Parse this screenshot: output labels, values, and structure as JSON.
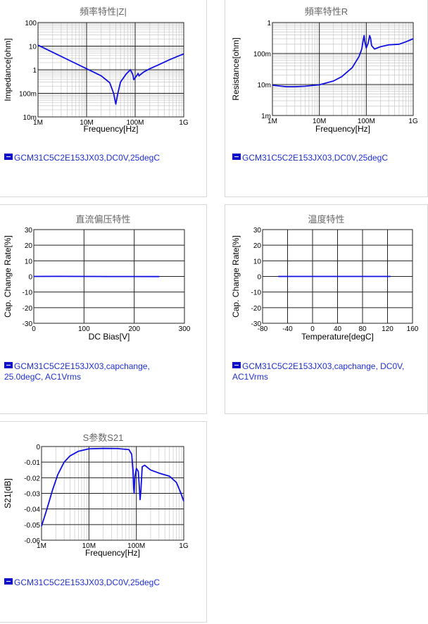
{
  "panels": [
    {
      "title": "頻率特性|Z|",
      "legend": "GCM31C5C2E153JX03,DC0V,25degC"
    },
    {
      "title": "頻率特性R",
      "legend": "GCM31C5C2E153JX03,DC0V,25degC"
    },
    {
      "title": "直流偏压特性",
      "legend": "GCM31C5C2E153JX03,capchange, 25.0degC, AC1Vrms"
    },
    {
      "title": "温度特性",
      "legend": "GCM31C5C2E153JX03,capchange, DC0V, AC1Vrms"
    },
    {
      "title": "S参数S21",
      "legend": "GCM31C5C2E153JX03,DC0V,25degC"
    }
  ],
  "chart_data": [
    {
      "type": "line",
      "title": "頻率特性|Z|",
      "xlabel": "Frequency[Hz]",
      "ylabel": "Impedance[ohm]",
      "xscale": "log",
      "yscale": "log",
      "xlim": [
        1000000,
        1000000000
      ],
      "ylim": [
        0.01,
        100
      ],
      "xticks": [
        "1M",
        "10M",
        "100M",
        "1G"
      ],
      "yticks": [
        "10m",
        "100m",
        "1",
        "10",
        "100"
      ],
      "grid": true,
      "series": [
        {
          "color": "#1010e0",
          "points": [
            [
              1000000,
              11
            ],
            [
              2000000,
              5.5
            ],
            [
              5000000,
              2.2
            ],
            [
              10000000,
              1.1
            ],
            [
              20000000,
              0.55
            ],
            [
              30000000,
              0.28
            ],
            [
              36000000,
              0.1
            ],
            [
              40000000,
              0.035
            ],
            [
              44000000,
              0.1
            ],
            [
              50000000,
              0.3
            ],
            [
              65000000,
              0.65
            ],
            [
              80000000,
              1.0
            ],
            [
              90000000,
              0.6
            ],
            [
              94000000,
              0.38
            ],
            [
              100000000,
              0.45
            ],
            [
              110000000,
              0.6
            ],
            [
              115000000,
              0.7
            ],
            [
              120000000,
              0.55
            ],
            [
              128000000,
              0.62
            ],
            [
              150000000,
              0.8
            ],
            [
              200000000,
              1.1
            ],
            [
              300000000,
              1.6
            ],
            [
              500000000,
              2.6
            ],
            [
              700000000,
              3.5
            ],
            [
              1000000000,
              4.7
            ]
          ]
        }
      ]
    },
    {
      "type": "line",
      "title": "頻率特性R",
      "xlabel": "Frequency[Hz]",
      "ylabel": "Resistance[ohm]",
      "xscale": "log",
      "yscale": "log",
      "xlim": [
        1000000,
        1000000000
      ],
      "ylim": [
        0.001,
        1
      ],
      "xticks": [
        "1M",
        "10M",
        "100M",
        "1G"
      ],
      "yticks": [
        "1m",
        "10m",
        "100m",
        "1"
      ],
      "grid": true,
      "series": [
        {
          "color": "#1010e0",
          "points": [
            [
              1000000,
              0.0095
            ],
            [
              2000000,
              0.0085
            ],
            [
              3000000,
              0.0085
            ],
            [
              5000000,
              0.0088
            ],
            [
              10000000,
              0.0098
            ],
            [
              20000000,
              0.013
            ],
            [
              30000000,
              0.018
            ],
            [
              50000000,
              0.035
            ],
            [
              70000000,
              0.08
            ],
            [
              80000000,
              0.14
            ],
            [
              87000000,
              0.3
            ],
            [
              90000000,
              0.38
            ],
            [
              93000000,
              0.25
            ],
            [
              100000000,
              0.15
            ],
            [
              110000000,
              0.22
            ],
            [
              118000000,
              0.38
            ],
            [
              123000000,
              0.32
            ],
            [
              130000000,
              0.18
            ],
            [
              150000000,
              0.14
            ],
            [
              200000000,
              0.165
            ],
            [
              300000000,
              0.19
            ],
            [
              500000000,
              0.2
            ],
            [
              700000000,
              0.24
            ],
            [
              1000000000,
              0.3
            ]
          ]
        }
      ]
    },
    {
      "type": "line",
      "title": "直流偏压特性",
      "xlabel": "DC Bias[V]",
      "ylabel": "Cap. Change Rate[%]",
      "xscale": "linear",
      "yscale": "linear",
      "xlim": [
        0,
        300
      ],
      "ylim": [
        -30,
        30
      ],
      "xticks": [
        "0",
        "100",
        "200",
        "300"
      ],
      "yticks": [
        "-30",
        "-20",
        "-10",
        "0",
        "10",
        "20",
        "30"
      ],
      "grid": true,
      "series": [
        {
          "color": "#1010e0",
          "points": [
            [
              0,
              0
            ],
            [
              50,
              0.05
            ],
            [
              100,
              0
            ],
            [
              150,
              -0.05
            ],
            [
              200,
              -0.05
            ],
            [
              250,
              -0.1
            ]
          ]
        }
      ]
    },
    {
      "type": "line",
      "title": "温度特性",
      "xlabel": "Temperature[degC]",
      "ylabel": "Cap. Change Rate[%]",
      "xscale": "linear",
      "yscale": "linear",
      "xlim": [
        -80,
        160
      ],
      "ylim": [
        -30,
        30
      ],
      "xticks": [
        "-80",
        "-40",
        "0",
        "40",
        "80",
        "120",
        "160"
      ],
      "yticks": [
        "-30",
        "-20",
        "-10",
        "0",
        "10",
        "20",
        "30"
      ],
      "grid": true,
      "series": [
        {
          "color": "#1010e0",
          "points": [
            [
              -55,
              0
            ],
            [
              0,
              0
            ],
            [
              25,
              0
            ],
            [
              85,
              0
            ],
            [
              125,
              0
            ]
          ]
        }
      ]
    },
    {
      "type": "line",
      "title": "S参数S21",
      "xlabel": "Frequency[Hz]",
      "ylabel": "S21[dB]",
      "xscale": "log",
      "yscale": "linear",
      "xlim": [
        1000000,
        1000000000
      ],
      "ylim": [
        -0.06,
        0
      ],
      "xticks": [
        "1M",
        "10M",
        "100M",
        "1G"
      ],
      "yticks": [
        "-0.06",
        "-0.05",
        "-0.04",
        "-0.03",
        "-0.02",
        "-0.01",
        "0"
      ],
      "grid": true,
      "series": [
        {
          "color": "#1010e0",
          "points": [
            [
              1000000,
              -0.051
            ],
            [
              1300000,
              -0.04
            ],
            [
              1700000,
              -0.028
            ],
            [
              2200000,
              -0.018
            ],
            [
              3000000,
              -0.01
            ],
            [
              4000000,
              -0.006
            ],
            [
              6000000,
              -0.003
            ],
            [
              10000000,
              -0.0015
            ],
            [
              20000000,
              -0.0012
            ],
            [
              40000000,
              -0.0013
            ],
            [
              70000000,
              -0.002
            ],
            [
              80000000,
              -0.005
            ],
            [
              85000000,
              -0.015
            ],
            [
              88000000,
              -0.027
            ],
            [
              90000000,
              -0.03
            ],
            [
              93000000,
              -0.02
            ],
            [
              100000000,
              -0.014
            ],
            [
              110000000,
              -0.016
            ],
            [
              115000000,
              -0.025
            ],
            [
              120000000,
              -0.034
            ],
            [
              125000000,
              -0.028
            ],
            [
              133000000,
              -0.013
            ],
            [
              150000000,
              -0.012
            ],
            [
              200000000,
              -0.015
            ],
            [
              300000000,
              -0.017
            ],
            [
              500000000,
              -0.019
            ],
            [
              700000000,
              -0.023
            ],
            [
              850000000,
              -0.029
            ],
            [
              1000000000,
              -0.035
            ]
          ]
        }
      ]
    }
  ]
}
